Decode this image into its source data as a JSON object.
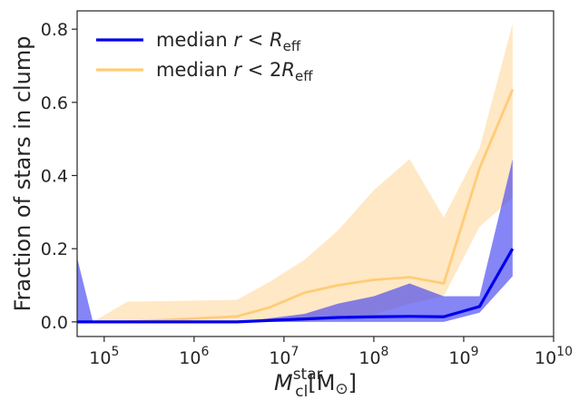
{
  "chart_data": {
    "type": "line",
    "title": "",
    "xlabel": {
      "base": "M",
      "sub": "cl",
      "sup": "star",
      "unit_open": "[M",
      "unit_sub": "⊙",
      "unit_close": "]"
    },
    "ylabel": "Fraction of stars in clump",
    "x_scale": "log",
    "xlim": [
      50000,
      10000000000
    ],
    "ylim": [
      -0.04,
      0.85
    ],
    "x_ticks": [
      {
        "value": 100000,
        "base": "10",
        "exp": "5"
      },
      {
        "value": 1000000,
        "base": "10",
        "exp": "6"
      },
      {
        "value": 10000000,
        "base": "10",
        "exp": "7"
      },
      {
        "value": 100000000,
        "base": "10",
        "exp": "8"
      },
      {
        "value": 1000000000,
        "base": "10",
        "exp": "9"
      },
      {
        "value": 10000000000,
        "base": "10",
        "exp": "10"
      }
    ],
    "y_ticks": [
      {
        "value": 0.0,
        "label": "0.0"
      },
      {
        "value": 0.2,
        "label": "0.2"
      },
      {
        "value": 0.4,
        "label": "0.4"
      },
      {
        "value": 0.6,
        "label": "0.6"
      },
      {
        "value": 0.8,
        "label": "0.8"
      }
    ],
    "grid": false,
    "legend_position": "top-left",
    "series": [
      {
        "name": "median r < R_eff",
        "label_parts": {
          "prefix": "median ",
          "var": "r",
          "op": " < ",
          "coef": "",
          "R": "R",
          "sub": "eff"
        },
        "color": "#0000ee",
        "band_color": "#3a3af0",
        "band_opacity": 0.62,
        "x": [
          50000,
          75000,
          3000000,
          7000000,
          17000000,
          40000000,
          100000000,
          250000000,
          600000000,
          1500000000,
          3500000000
        ],
        "median": [
          0.0,
          0.0,
          0.0,
          0.004,
          0.008,
          0.012,
          0.014,
          0.015,
          0.014,
          0.042,
          0.2
        ],
        "lower": [
          0.0,
          0.0,
          0.0,
          0.0,
          0.0,
          0.0,
          0.0,
          0.0,
          0.0,
          0.025,
          0.125
        ],
        "upper": [
          0.175,
          0.0,
          0.0,
          0.01,
          0.022,
          0.05,
          0.07,
          0.105,
          0.07,
          0.07,
          0.445
        ]
      },
      {
        "name": "median r < 2R_eff",
        "label_parts": {
          "prefix": "median ",
          "var": "r",
          "op": " < ",
          "coef": "2",
          "R": "R",
          "sub": "eff"
        },
        "color": "#ffcc77",
        "band_color": "#ffd596",
        "band_opacity": 0.55,
        "x": [
          50000,
          75000,
          180000,
          3000000,
          7000000,
          17000000,
          40000000,
          100000000,
          250000000,
          600000000,
          1500000000,
          3500000000
        ],
        "median": [
          0.0,
          0.0,
          0.0,
          0.015,
          0.04,
          0.08,
          0.1,
          0.115,
          0.122,
          0.105,
          0.42,
          0.635
        ],
        "lower": [
          0.0,
          0.0,
          0.0,
          0.0,
          0.0,
          0.0,
          0.01,
          0.02,
          0.05,
          0.07,
          0.26,
          0.34
        ],
        "upper": [
          0.0,
          0.0,
          0.055,
          0.06,
          0.11,
          0.17,
          0.25,
          0.36,
          0.445,
          0.285,
          0.475,
          0.815
        ]
      }
    ]
  }
}
